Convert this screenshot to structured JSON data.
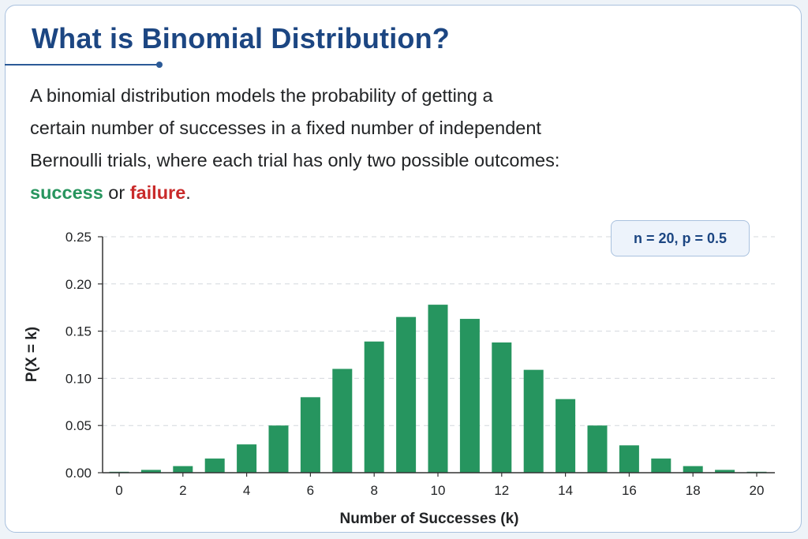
{
  "header": {
    "title": "What is Binomial Distribution?"
  },
  "description": {
    "lines": [
      "A binomial distribution models the probability of getting a",
      "certain number of successes in a fixed number of independent",
      "Bernoulli trials, where each trial has only two possible outcomes:"
    ],
    "success_word": "success",
    "connector": " or ",
    "failure_word": "failure",
    "ending": "."
  },
  "colors": {
    "title": "#1c4682",
    "bar": "#26955f",
    "success": "#27955e",
    "failure": "#c92a2a"
  },
  "annotation": "n = 20, p = 0.5",
  "chart_data": {
    "type": "bar",
    "xlabel": "Number of Successes (k)",
    "ylabel": "P(X = k)",
    "ylim": [
      0,
      0.25
    ],
    "yticks": [
      "0.00",
      "0.05",
      "0.10",
      "0.15",
      "0.20",
      "0.25"
    ],
    "xticks": [
      "0",
      "2",
      "4",
      "6",
      "8",
      "10",
      "12",
      "14",
      "16",
      "18",
      "20"
    ],
    "grid": "horizontal-dashed",
    "categories": [
      0,
      1,
      2,
      3,
      4,
      5,
      6,
      7,
      8,
      9,
      10,
      11,
      12,
      13,
      14,
      15,
      16,
      17,
      18,
      19,
      20
    ],
    "values": [
      0.001,
      0.003,
      0.007,
      0.015,
      0.03,
      0.05,
      0.08,
      0.11,
      0.139,
      0.165,
      0.178,
      0.163,
      0.138,
      0.109,
      0.078,
      0.05,
      0.029,
      0.015,
      0.007,
      0.003,
      0.001
    ]
  }
}
